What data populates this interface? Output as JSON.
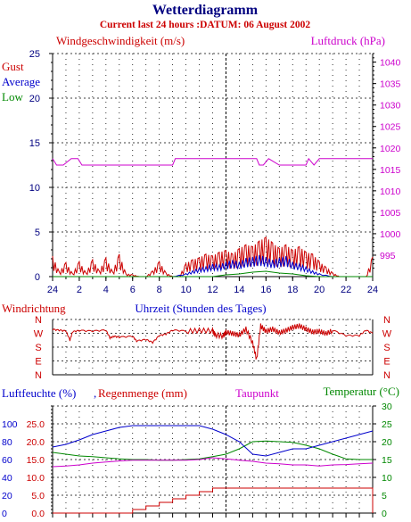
{
  "header": {
    "title": "Wetterdiagramm",
    "subtitle": "Current last 24 hours :DATUM: 06 August 2002"
  },
  "colors": {
    "wind_gust": "#cc0000",
    "wind_average": "#0000cc",
    "wind_low": "#008800",
    "pressure": "#cc00cc",
    "direction": "#cc0000",
    "humidity": "#0000cc",
    "rain": "#cc0000",
    "dewpoint": "#cc00cc",
    "temperature": "#008800",
    "grid": "#000000"
  },
  "chart_data": [
    {
      "type": "line",
      "name": "wind_pressure",
      "title": "",
      "ylabel_left": "Windgeschwindigkeit (m/s)",
      "ylabel_right": "Luftdruck (hPa)",
      "ylim_left": [
        0,
        25
      ],
      "ylim_right": [
        990,
        1042
      ],
      "yticks_left": [
        "0",
        "5",
        "10",
        "15",
        "20",
        "25"
      ],
      "yticks_right": [
        "995",
        "1000",
        "1005",
        "1010",
        "1015",
        "1020",
        "1025",
        "1030",
        "1035",
        "1040"
      ],
      "xticks": [
        "24",
        "2",
        "4",
        "6",
        "8",
        "10",
        "12",
        "14",
        "16",
        "18",
        "20",
        "22",
        "24"
      ],
      "legend": [
        "Gust",
        "Average",
        "Low"
      ],
      "legend_position": "left",
      "series": {
        "gust": {
          "x": [
            0,
            0.5,
            1,
            1.5,
            2,
            2.5,
            3,
            3.5,
            4,
            4.5,
            5,
            5.5,
            6,
            6.5,
            7,
            7.5,
            8,
            8.5,
            9,
            9.5,
            10,
            10.5,
            11,
            11.5,
            12,
            12.5,
            13,
            13.5,
            14,
            14.5,
            15,
            15.5,
            16,
            16.5,
            17,
            17.5,
            18,
            18.5,
            19,
            19.5,
            20,
            20.5,
            21,
            21.5,
            22,
            22.5,
            23,
            23.5,
            24
          ],
          "y": [
            2.2,
            0.5,
            1.5,
            0.3,
            1.6,
            0.4,
            1.8,
            0.6,
            2.0,
            0.5,
            2.4,
            0.3,
            0.2,
            0,
            0,
            0.6,
            1.6,
            0.4,
            0,
            0,
            1.4,
            1.8,
            2.0,
            2.4,
            2.2,
            2.6,
            2.8,
            2.4,
            3.0,
            3.4,
            3.2,
            3.8,
            4.2,
            3.6,
            3.0,
            3.4,
            2.8,
            3.2,
            2.6,
            2.4,
            1.6,
            1.0,
            0.4,
            0,
            0,
            0,
            0,
            0,
            2.2
          ]
        },
        "average": {
          "x": [
            0,
            1,
            2,
            3,
            4,
            5,
            6,
            7,
            8,
            9,
            10,
            10.5,
            11,
            11.5,
            12,
            12.5,
            13,
            13.5,
            14,
            14.5,
            15,
            15.5,
            16,
            16.5,
            17,
            17.5,
            18,
            18.5,
            19,
            19.5,
            20,
            21,
            24
          ],
          "y": [
            0,
            0,
            0,
            0,
            0,
            0,
            0,
            0,
            0,
            0,
            0.3,
            0.6,
            0.9,
            1.0,
            1.3,
            1.2,
            1.5,
            1.7,
            1.5,
            1.9,
            2.0,
            2.2,
            2.0,
            1.7,
            1.9,
            2.1,
            1.5,
            1.3,
            1.0,
            0.6,
            0.3,
            0,
            0
          ]
        },
        "low": {
          "x": [
            0,
            10,
            12,
            13,
            14,
            15,
            16,
            17,
            18,
            19,
            20,
            21,
            24
          ],
          "y": [
            0,
            0,
            0,
            0.2,
            0.3,
            0.5,
            0.6,
            0.4,
            0.3,
            0.1,
            0,
            0,
            0
          ]
        },
        "pressure": {
          "x": [
            0,
            0.3,
            0.8,
            1.4,
            1.9,
            2.2,
            3,
            5,
            7,
            9,
            9.2,
            10,
            12,
            14,
            15.3,
            15.5,
            15.8,
            16.2,
            17,
            18,
            19,
            19.2,
            19.6,
            20,
            20.5,
            21,
            22,
            23,
            24
          ],
          "y": [
            1017.5,
            1016,
            1016,
            1017.5,
            1017.5,
            1016,
            1016,
            1016,
            1016,
            1016,
            1017.5,
            1017.5,
            1017.5,
            1017.5,
            1017.5,
            1016,
            1016,
            1017.5,
            1016,
            1016,
            1016,
            1017.5,
            1016,
            1017.5,
            1017.5,
            1017.5,
            1017.5,
            1017.5,
            1017.5
          ]
        }
      }
    },
    {
      "type": "line",
      "name": "wind_direction",
      "ylabel_left": "Windrichtung",
      "xlabel": "Uhrzeit (Stunden des Tages)",
      "direction_labels": [
        "N",
        "W",
        "S",
        "E",
        "N"
      ],
      "series": {
        "direction": {
          "x": [
            0,
            0.5,
            1,
            1.3,
            1.5,
            2,
            3,
            4,
            4.3,
            4.6,
            5,
            6,
            6.3,
            7,
            7.5,
            8,
            8.5,
            9,
            10,
            11,
            12,
            12.2,
            12.8,
            13,
            13.5,
            14,
            14.5,
            15,
            15.3,
            15.6,
            16,
            16.5,
            17,
            17.5,
            18,
            18.5,
            19,
            19.5,
            20,
            20.5,
            21,
            22,
            23,
            23.5,
            24
          ],
          "y": [
            295,
            290,
            285,
            225,
            280,
            288,
            285,
            290,
            240,
            250,
            245,
            250,
            220,
            230,
            210,
            255,
            265,
            290,
            285,
            290,
            288,
            260,
            255,
            280,
            270,
            260,
            300,
            210,
            100,
            320,
            285,
            300,
            275,
            290,
            310,
            320,
            300,
            280,
            285,
            270,
            290,
            255,
            255,
            290,
            270
          ]
        }
      }
    },
    {
      "type": "line",
      "name": "humidity_rain_temp",
      "ylabel_left": "Luftfeuchte (%)",
      "ylabel_left2": "Regenmenge (mm)",
      "legend_dewpoint": "Taupunkt",
      "ylabel_right": "Temperatur (°C)",
      "ylim_humidity": [
        0,
        120
      ],
      "ylim_rain": [
        0,
        30
      ],
      "ylim_temp": [
        0,
        30
      ],
      "yticks_humidity": [
        "0",
        "20",
        "40",
        "60",
        "80",
        "100"
      ],
      "yticks_rain": [
        "0.0",
        "5.0",
        "10.0",
        "15.0",
        "20.0",
        "25.0"
      ],
      "yticks_temp": [
        "0",
        "5",
        "10",
        "15",
        "20",
        "25",
        "30"
      ],
      "series": {
        "humidity": {
          "x": [
            0,
            1,
            2,
            3,
            4,
            5,
            6,
            7,
            8,
            9,
            10,
            11,
            12,
            13,
            14,
            15,
            16,
            17,
            18,
            19,
            20,
            21,
            22,
            23,
            24
          ],
          "y": [
            74,
            77,
            82,
            88,
            92,
            96,
            98,
            98,
            98,
            98,
            98,
            98,
            94,
            88,
            80,
            66,
            64,
            68,
            72,
            72,
            76,
            80,
            84,
            88,
            92
          ]
        },
        "rain": {
          "x": [
            0,
            5.5,
            6,
            7,
            8,
            9,
            10,
            11,
            12,
            13,
            14,
            15,
            16,
            17,
            18,
            19,
            20,
            21,
            22,
            23,
            23.8,
            24
          ],
          "y": [
            0,
            0,
            1,
            2,
            3,
            4,
            5,
            6,
            7,
            7,
            7,
            7,
            7,
            7,
            7,
            7,
            7,
            7,
            7,
            7,
            7,
            0
          ]
        },
        "temperature": {
          "x": [
            0,
            1,
            2,
            3,
            4,
            5,
            6,
            7,
            8,
            9,
            10,
            11,
            12,
            13,
            14,
            15,
            16,
            17,
            18,
            19,
            20,
            21,
            22,
            23,
            24
          ],
          "y": [
            17,
            16.5,
            16,
            15.8,
            15.5,
            15.2,
            15,
            15,
            14.8,
            14.8,
            15,
            15.2,
            15.8,
            16.5,
            18,
            20,
            20.2,
            20,
            19.8,
            19,
            18,
            16.5,
            15.2,
            15,
            15
          ]
        },
        "dewpoint": {
          "x": [
            0,
            1,
            2,
            3,
            4,
            5,
            6,
            7,
            8,
            9,
            10,
            11,
            12,
            13,
            14,
            15,
            16,
            17,
            18,
            19,
            20,
            21,
            22,
            23,
            24
          ],
          "y": [
            13,
            13.2,
            13.5,
            14,
            14.3,
            14.6,
            14.8,
            14.8,
            14.8,
            14.8,
            14.8,
            15,
            15.5,
            15.2,
            14.8,
            14.5,
            14,
            13.8,
            13.5,
            13.5,
            13.2,
            13.5,
            13.6,
            13.8,
            14
          ]
        }
      }
    }
  ]
}
